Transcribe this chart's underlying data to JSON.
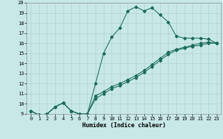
{
  "xlabel": "Humidex (Indice chaleur)",
  "xlim": [
    -0.5,
    23.5
  ],
  "ylim": [
    9,
    20
  ],
  "yticks": [
    9,
    10,
    11,
    12,
    13,
    14,
    15,
    16,
    17,
    18,
    19,
    20
  ],
  "xticks": [
    0,
    1,
    2,
    3,
    4,
    5,
    6,
    7,
    8,
    9,
    10,
    11,
    12,
    13,
    14,
    15,
    16,
    17,
    18,
    19,
    20,
    21,
    22,
    23
  ],
  "bg_color": "#c8e8e8",
  "grid_color": "#b0d0d0",
  "line_color": "#1a6b5a",
  "line1_x": [
    0,
    1,
    2,
    3,
    4,
    5,
    6,
    7,
    8,
    9,
    10,
    11,
    12,
    13,
    14,
    15,
    16,
    17,
    18,
    19,
    20,
    21,
    22,
    23
  ],
  "line1_y": [
    9.3,
    8.9,
    9.0,
    9.7,
    10.1,
    9.3,
    9.0,
    9.0,
    12.0,
    15.0,
    16.6,
    17.5,
    19.2,
    19.6,
    19.2,
    19.5,
    18.8,
    18.1,
    16.7,
    16.5,
    16.5,
    16.5,
    16.4,
    16.0
  ],
  "line2_x": [
    0,
    1,
    2,
    3,
    4,
    5,
    6,
    7,
    8,
    9,
    10,
    11,
    12,
    13,
    14,
    15,
    16,
    17,
    18,
    19,
    20,
    21,
    22,
    23
  ],
  "line2_y": [
    9.3,
    8.9,
    9.0,
    9.7,
    10.1,
    9.3,
    9.0,
    9.0,
    10.5,
    11.0,
    11.5,
    11.8,
    12.2,
    12.6,
    13.1,
    13.7,
    14.3,
    14.9,
    15.3,
    15.5,
    15.7,
    15.8,
    16.0,
    16.0
  ],
  "line3_x": [
    0,
    1,
    2,
    3,
    4,
    5,
    6,
    7,
    8,
    9,
    10,
    11,
    12,
    13,
    14,
    15,
    16,
    17,
    18,
    19,
    20,
    21,
    22,
    23
  ],
  "line3_y": [
    9.3,
    8.9,
    9.0,
    9.7,
    10.1,
    9.3,
    9.0,
    9.0,
    10.8,
    11.2,
    11.7,
    12.0,
    12.4,
    12.8,
    13.3,
    13.9,
    14.5,
    15.1,
    15.4,
    15.6,
    15.8,
    16.0,
    16.1,
    16.0
  ],
  "marker": "D",
  "markersize": 2,
  "linewidth": 0.8,
  "tick_fontsize": 5,
  "xlabel_fontsize": 6
}
